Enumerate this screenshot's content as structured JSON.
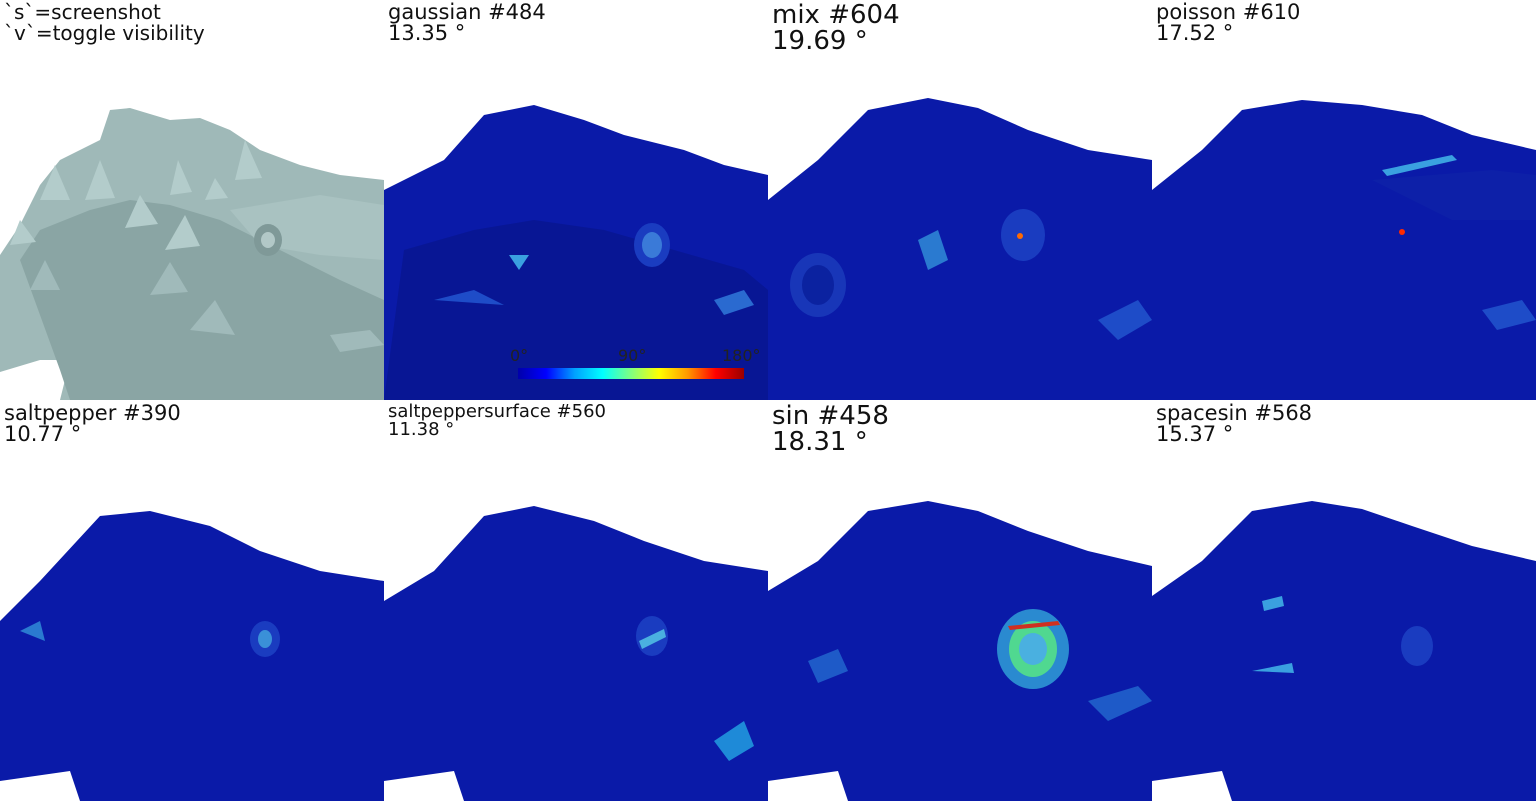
{
  "help": {
    "line1": "`s`=screenshot",
    "line2": "`v`=toggle visibility"
  },
  "panels": [
    {
      "name": "gaussian #484",
      "angle": "13.35 °"
    },
    {
      "name": "mix #604",
      "angle": "19.69 °"
    },
    {
      "name": "poisson #610",
      "angle": "17.52 °"
    },
    {
      "name": "saltpepper #390",
      "angle": "10.77 °"
    },
    {
      "name": "saltpeppersurface #560",
      "angle": "11.38 °"
    },
    {
      "name": "sin #458",
      "angle": "18.31 °"
    },
    {
      "name": "spacesin #568",
      "angle": "15.37 °"
    }
  ],
  "colorbar": {
    "min_label": "0°",
    "mid_label": "90°",
    "max_label": "180°",
    "colors": [
      "#0000aa",
      "#0000ff",
      "#00a0ff",
      "#00ffff",
      "#80ff80",
      "#ffff00",
      "#ff9900",
      "#ff0000",
      "#990000"
    ]
  },
  "colors": {
    "reference_mesh": "#9fb9b8",
    "error_mesh": "#0a1aa8",
    "background": "#ffffff"
  }
}
